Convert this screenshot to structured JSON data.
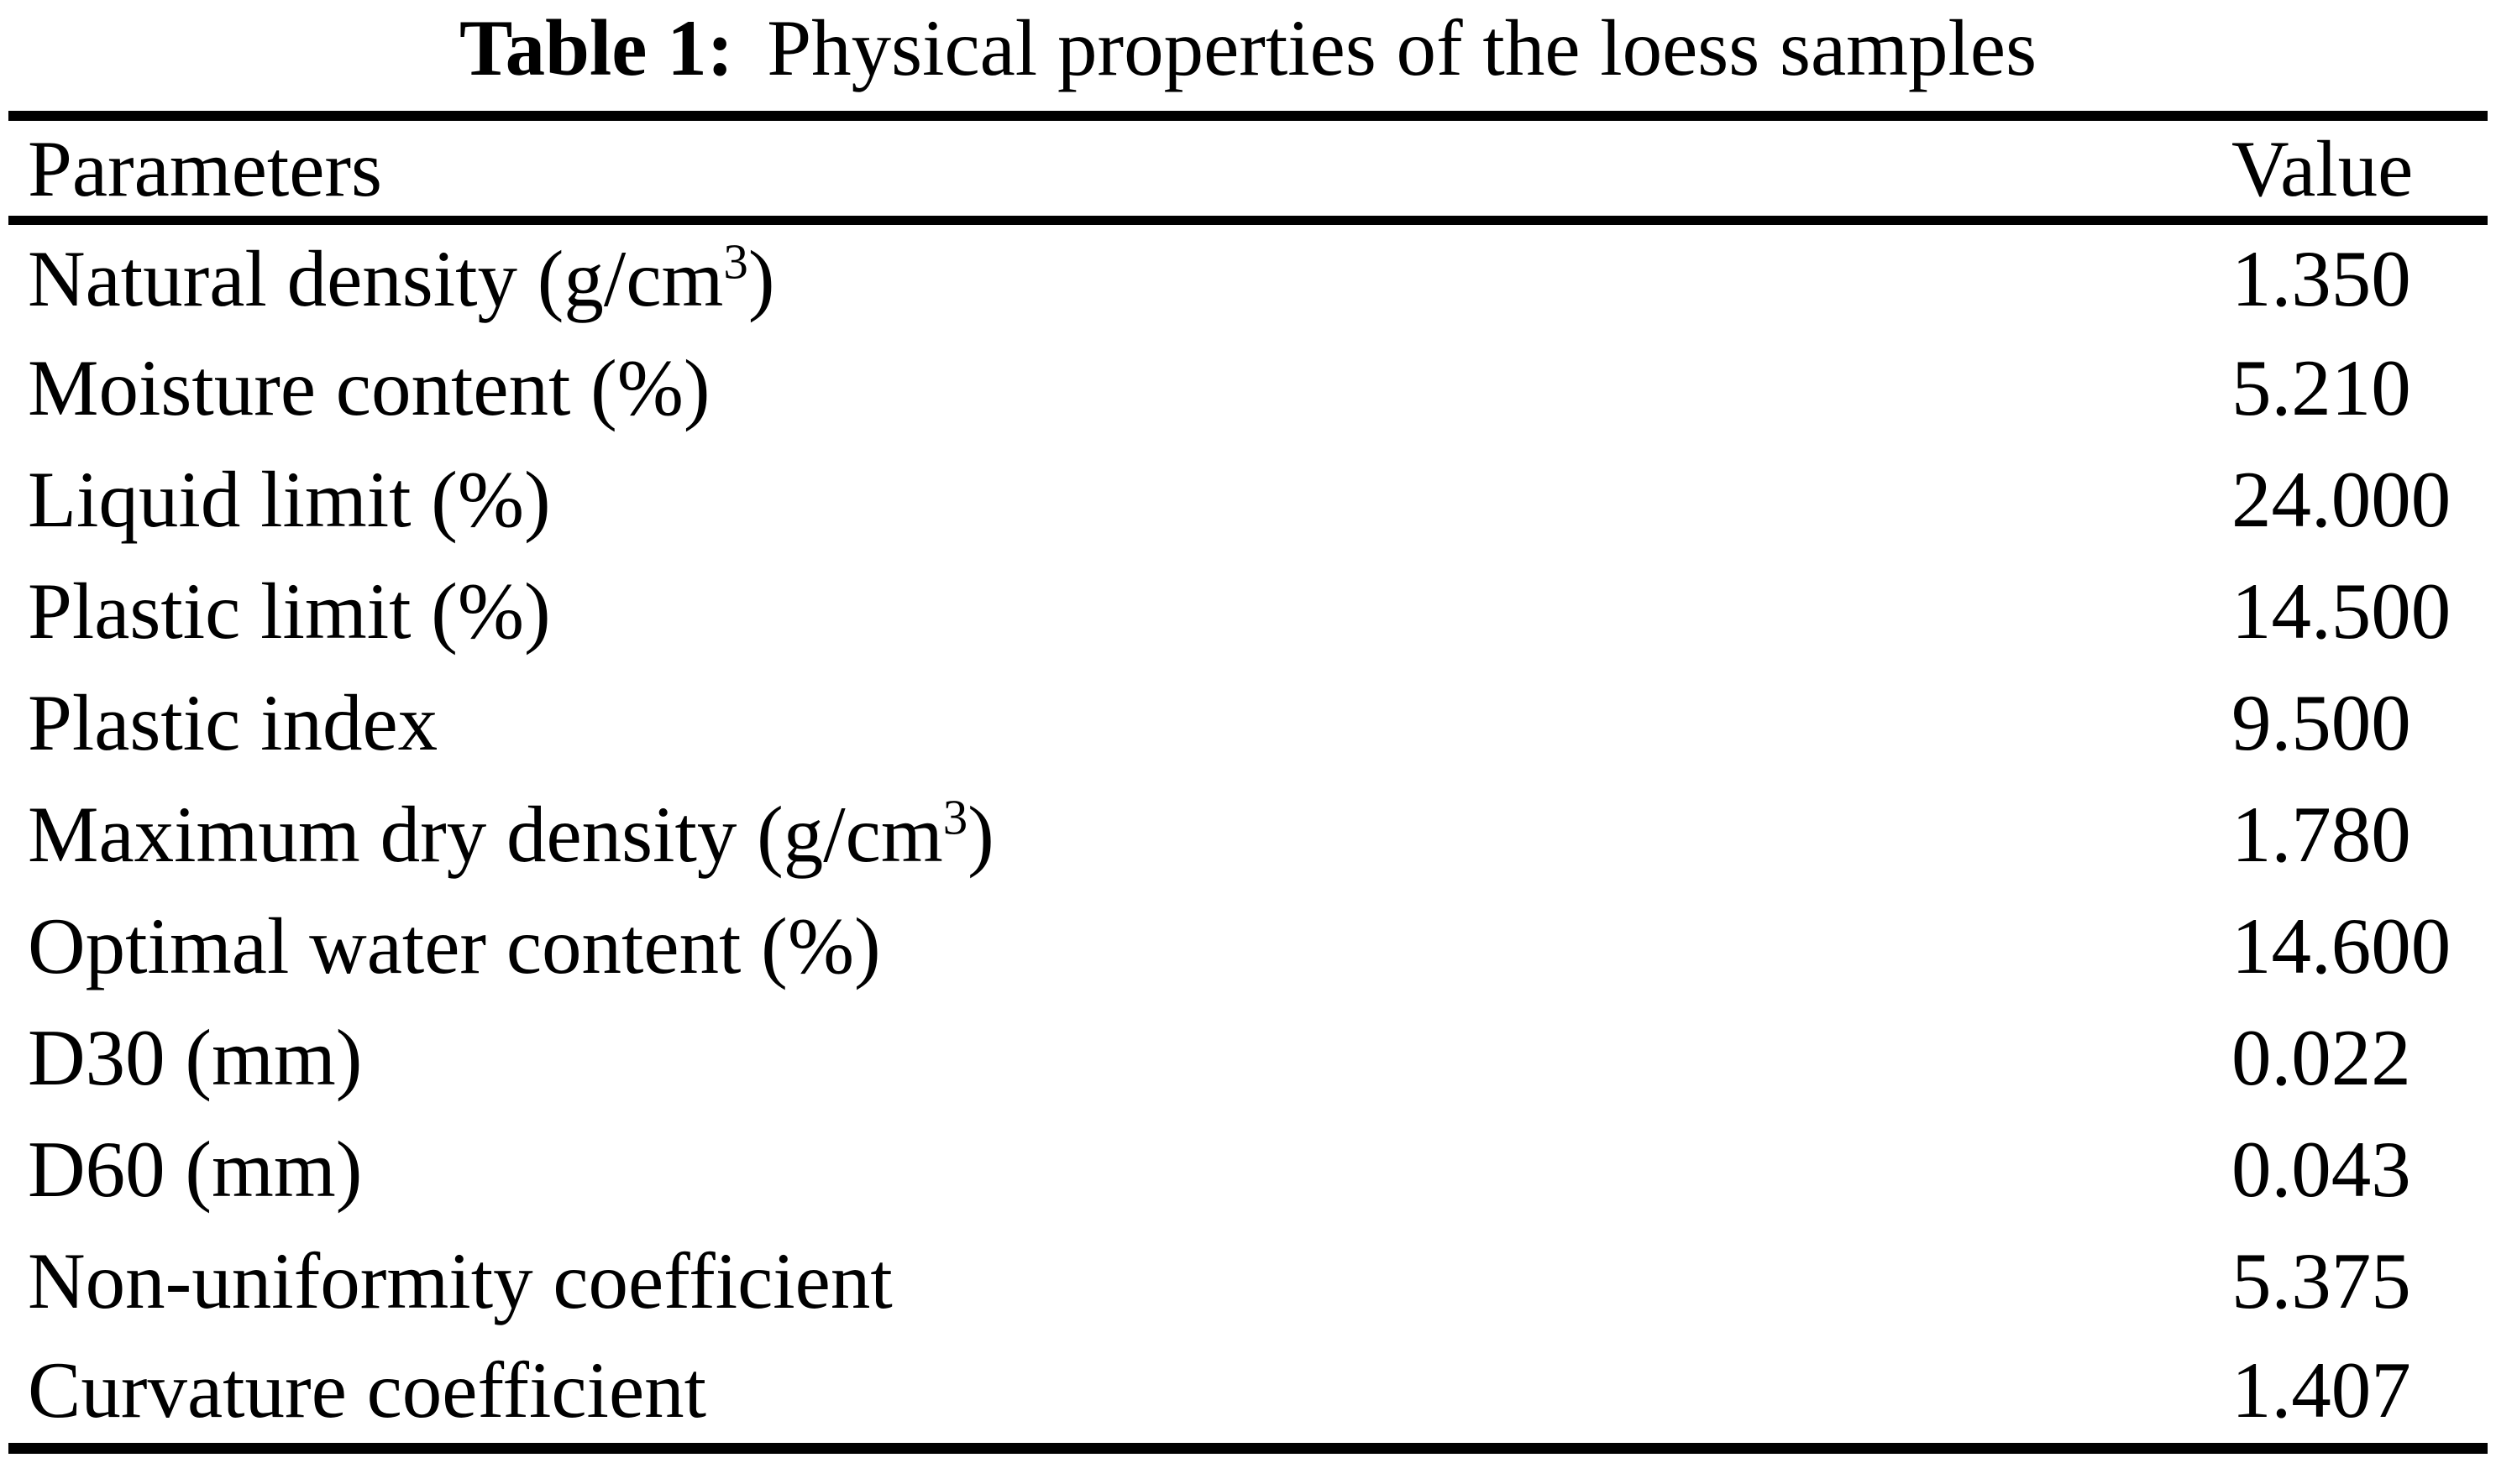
{
  "title": {
    "label": "Table 1:",
    "text": "Physical properties of the loess samples"
  },
  "table": {
    "headers": {
      "parameter": "Parameters",
      "value": "Value"
    },
    "rows": [
      {
        "prefix": "Natural density (g/cm",
        "sup": "3",
        "suffix": ")",
        "value": "1.350"
      },
      {
        "prefix": "Moisture content (%)",
        "sup": "",
        "suffix": "",
        "value": "5.210"
      },
      {
        "prefix": "Liquid limit (%)",
        "sup": "",
        "suffix": "",
        "value": "24.000"
      },
      {
        "prefix": "Plastic limit (%)",
        "sup": "",
        "suffix": "",
        "value": "14.500"
      },
      {
        "prefix": "Plastic index",
        "sup": "",
        "suffix": "",
        "value": "9.500"
      },
      {
        "prefix": "Maximum dry density (g/cm",
        "sup": "3",
        "suffix": ")",
        "value": "1.780"
      },
      {
        "prefix": "Optimal water content (%)",
        "sup": "",
        "suffix": "",
        "value": "14.600"
      },
      {
        "prefix": "D30 (mm)",
        "sup": "",
        "suffix": "",
        "value": "0.022"
      },
      {
        "prefix": "D60 (mm)",
        "sup": "",
        "suffix": "",
        "value": "0.043"
      },
      {
        "prefix": "Non-uniformity coefficient",
        "sup": "",
        "suffix": "",
        "value": "5.375"
      },
      {
        "prefix": "Curvature coefficient",
        "sup": "",
        "suffix": "",
        "value": "1.407"
      }
    ]
  }
}
